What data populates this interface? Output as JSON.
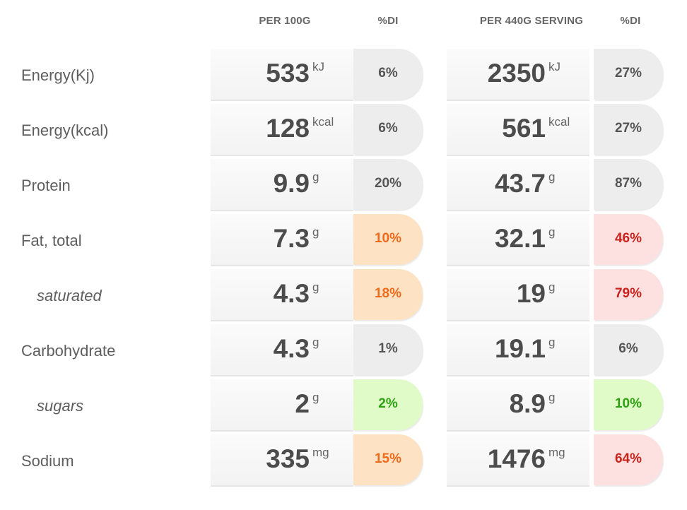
{
  "headers": {
    "per100g": "PER 100G",
    "di1": "%DI",
    "perServing": "PER 440G SERVING",
    "di2": "%DI"
  },
  "colors": {
    "grey": "#ededed",
    "amber": "#fde3c4",
    "red": "#fde0e0",
    "green": "#e0fbc7"
  },
  "rows": [
    {
      "label": "Energy(Kj)",
      "sub": false,
      "per100_value": "533",
      "per100_unit": "kJ",
      "per100_di": "6%",
      "per100_di_level": "grey",
      "serving_value": "2350",
      "serving_unit": "kJ",
      "serving_di": "27%",
      "serving_di_level": "grey"
    },
    {
      "label": "Energy(kcal)",
      "sub": false,
      "per100_value": "128",
      "per100_unit": "kcal",
      "per100_di": "6%",
      "per100_di_level": "grey",
      "serving_value": "561",
      "serving_unit": "kcal",
      "serving_di": "27%",
      "serving_di_level": "grey"
    },
    {
      "label": "Protein",
      "sub": false,
      "per100_value": "9.9",
      "per100_unit": "g",
      "per100_di": "20%",
      "per100_di_level": "grey",
      "serving_value": "43.7",
      "serving_unit": "g",
      "serving_di": "87%",
      "serving_di_level": "grey"
    },
    {
      "label": "Fat, total",
      "sub": false,
      "per100_value": "7.3",
      "per100_unit": "g",
      "per100_di": "10%",
      "per100_di_level": "amber",
      "serving_value": "32.1",
      "serving_unit": "g",
      "serving_di": "46%",
      "serving_di_level": "red"
    },
    {
      "label": "saturated",
      "sub": true,
      "per100_value": "4.3",
      "per100_unit": "g",
      "per100_di": "18%",
      "per100_di_level": "amber",
      "serving_value": "19",
      "serving_unit": "g",
      "serving_di": "79%",
      "serving_di_level": "red"
    },
    {
      "label": "Carbohydrate",
      "sub": false,
      "per100_value": "4.3",
      "per100_unit": "g",
      "per100_di": "1%",
      "per100_di_level": "grey",
      "serving_value": "19.1",
      "serving_unit": "g",
      "serving_di": "6%",
      "serving_di_level": "grey"
    },
    {
      "label": "sugars",
      "sub": true,
      "per100_value": "2",
      "per100_unit": "g",
      "per100_di": "2%",
      "per100_di_level": "green",
      "serving_value": "8.9",
      "serving_unit": "g",
      "serving_di": "10%",
      "serving_di_level": "green"
    },
    {
      "label": "Sodium",
      "sub": false,
      "per100_value": "335",
      "per100_unit": "mg",
      "per100_di": "15%",
      "per100_di_level": "amber",
      "serving_value": "1476",
      "serving_unit": "mg",
      "serving_di": "64%",
      "serving_di_level": "red"
    }
  ]
}
